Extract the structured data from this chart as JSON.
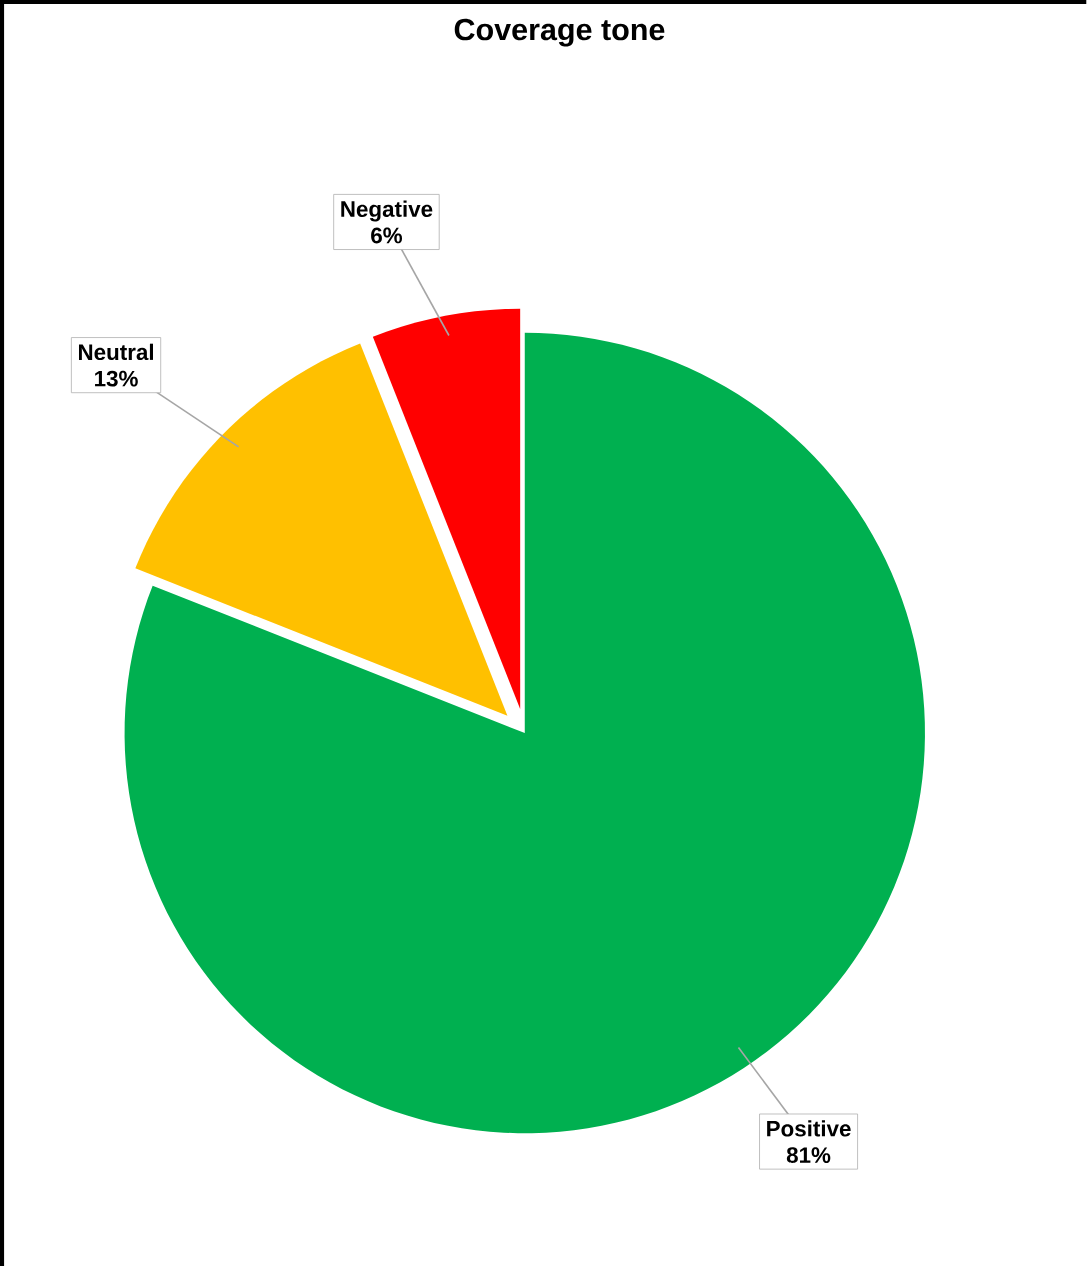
{
  "chart_data": {
    "type": "pie",
    "title": "Coverage tone",
    "categories": [
      "Positive",
      "Neutral",
      "Negative"
    ],
    "values": [
      81,
      13,
      6
    ],
    "colors": [
      "#00b050",
      "#ffc000",
      "#ff0000"
    ],
    "value_labels": [
      "81%",
      "13%",
      "6%"
    ],
    "legend": false
  }
}
